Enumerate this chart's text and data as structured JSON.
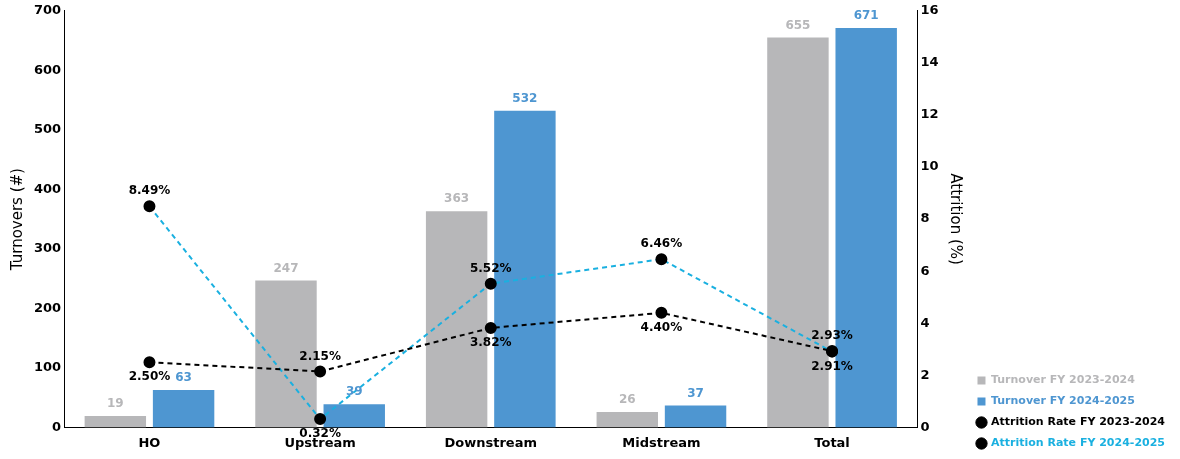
{
  "chart_data": {
    "type": "bar",
    "categories": [
      "HO",
      "Upstream",
      "Downstream",
      "Midstream",
      "Total"
    ],
    "ylabel": "Turnovers (#)",
    "y2label": "Attrition (%)",
    "ylim": [
      0,
      700
    ],
    "yticks": [
      0,
      100,
      200,
      300,
      400,
      500,
      600,
      700
    ],
    "y2lim": [
      0,
      16
    ],
    "y2ticks": [
      0,
      2,
      4,
      6,
      8,
      10,
      12,
      14,
      16
    ],
    "grid": false,
    "legend": "bottom right",
    "data_labels": true,
    "series": [
      {
        "name": "Turnover FY 2023-2024",
        "color": "#b7b7b9",
        "values": [
          19,
          247,
          363,
          26,
          655
        ]
      },
      {
        "name": "Turnover FY 2024-2025",
        "color": "#4e96d1",
        "values": [
          63,
          39,
          532,
          37,
          671
        ]
      },
      {
        "name": "Attrition Rate FY 2023-2024",
        "type": "line",
        "axis": "y2",
        "color": "#000000",
        "marker": "circle",
        "line_style": "dashed",
        "values": [
          2.5,
          2.15,
          3.82,
          4.4,
          2.93
        ],
        "value_labels": [
          "2.50%",
          "2.15%",
          "3.82%",
          "4.40%",
          "2.93%"
        ]
      },
      {
        "name": "Attrition Rate FY 2024-2025",
        "type": "line",
        "axis": "y2",
        "color": "#1ab0e0",
        "marker": "circle",
        "line_style": "dashed",
        "values": [
          8.49,
          0.32,
          5.52,
          6.46,
          2.91
        ],
        "value_labels": [
          "8.49%",
          "0.32%",
          "5.52%",
          "6.46%",
          "2.91%"
        ]
      }
    ]
  }
}
